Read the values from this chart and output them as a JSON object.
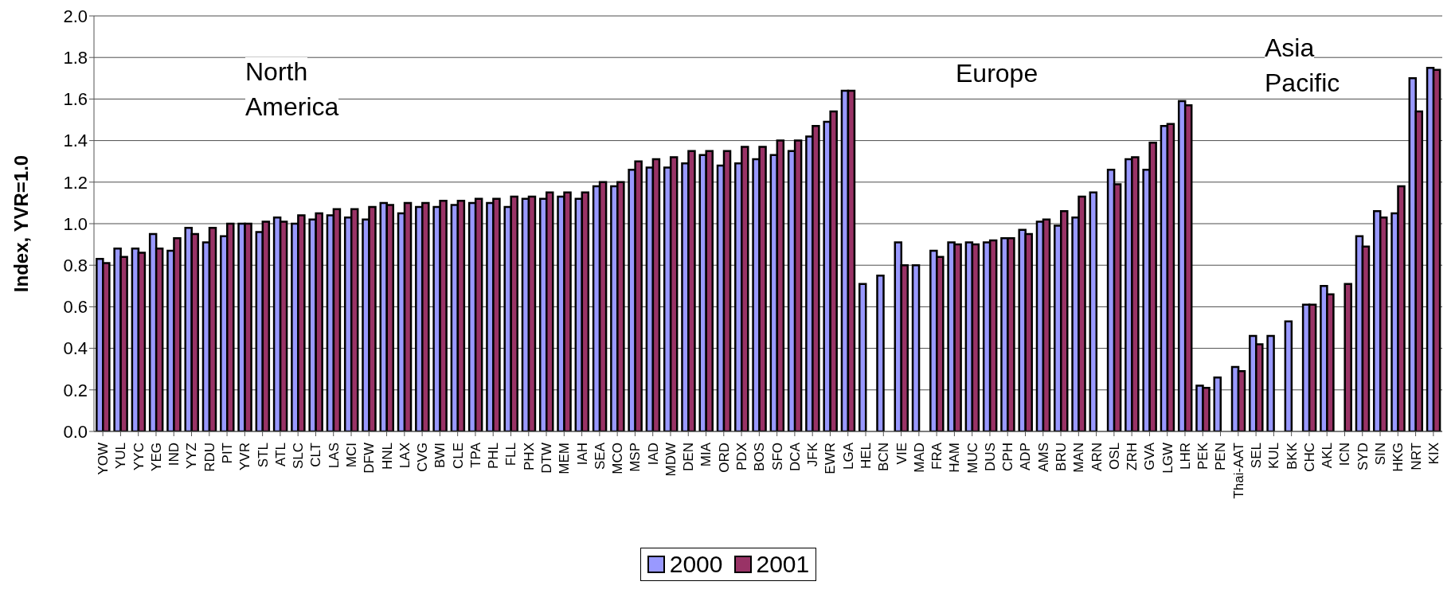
{
  "chart_data": {
    "type": "bar",
    "ylabel": "Index, YVR=1.0",
    "categories": [
      "YOW",
      "YUL",
      "YYC",
      "YEG",
      "IND",
      "YYZ",
      "RDU",
      "PIT",
      "YVR",
      "STL",
      "ATL",
      "SLC",
      "CLT",
      "LAS",
      "MCI",
      "DFW",
      "HNL",
      "LAX",
      "CVG",
      "BWI",
      "CLE",
      "TPA",
      "PHL",
      "FLL",
      "PHX",
      "DTW",
      "MEM",
      "IAH",
      "SEA",
      "MCO",
      "MSP",
      "IAD",
      "MDW",
      "DEN",
      "MIA",
      "ORD",
      "PDX",
      "BOS",
      "SFO",
      "DCA",
      "JFK",
      "EWR",
      "LGA",
      "HEL",
      "BCN",
      "VIE",
      "MAD",
      "FRA",
      "HAM",
      "MUC",
      "DUS",
      "CPH",
      "ADP",
      "AMS",
      "BRU",
      "MAN",
      "ARN",
      "OSL",
      "ZRH",
      "GVA",
      "LGW",
      "LHR",
      "PEK",
      "PEN",
      "Thai-AAT",
      "SEL",
      "KUL",
      "BKK",
      "CHC",
      "AKL",
      "ICN",
      "SYD",
      "SIN",
      "HKG",
      "NRT",
      "KIX"
    ],
    "series": [
      {
        "name": "2000",
        "color": "#9999ff",
        "values": [
          0.83,
          0.88,
          0.88,
          0.95,
          0.87,
          0.98,
          0.91,
          0.94,
          1.0,
          0.96,
          1.03,
          1.0,
          1.02,
          1.04,
          1.03,
          1.02,
          1.1,
          1.05,
          1.08,
          1.08,
          1.09,
          1.1,
          1.1,
          1.08,
          1.12,
          1.12,
          1.13,
          1.12,
          1.18,
          1.18,
          1.26,
          1.27,
          1.27,
          1.29,
          1.33,
          1.28,
          1.29,
          1.31,
          1.33,
          1.35,
          1.42,
          1.49,
          1.64,
          0.71,
          0.75,
          0.91,
          0.8,
          0.87,
          0.91,
          0.91,
          0.91,
          0.93,
          0.97,
          1.01,
          0.99,
          1.03,
          1.15,
          1.26,
          1.31,
          1.26,
          1.47,
          1.59,
          0.22,
          0.26,
          0.31,
          0.46,
          0.46,
          0.53,
          0.61,
          0.7,
          null,
          0.94,
          1.06,
          1.05,
          1.7,
          1.75
        ]
      },
      {
        "name": "2001",
        "color": "#993366",
        "values": [
          0.81,
          0.84,
          0.86,
          0.88,
          0.93,
          0.95,
          0.98,
          1.0,
          1.0,
          1.01,
          1.01,
          1.04,
          1.05,
          1.07,
          1.07,
          1.08,
          1.09,
          1.1,
          1.1,
          1.11,
          1.11,
          1.12,
          1.12,
          1.13,
          1.13,
          1.15,
          1.15,
          1.15,
          1.2,
          1.2,
          1.3,
          1.31,
          1.32,
          1.35,
          1.35,
          1.35,
          1.37,
          1.37,
          1.4,
          1.4,
          1.47,
          1.54,
          1.64,
          null,
          null,
          0.8,
          null,
          0.84,
          0.9,
          0.9,
          0.92,
          0.93,
          0.95,
          1.02,
          1.06,
          1.13,
          null,
          1.19,
          1.32,
          1.39,
          1.48,
          1.57,
          0.21,
          null,
          0.29,
          0.42,
          null,
          null,
          0.61,
          0.66,
          0.71,
          0.89,
          1.03,
          1.18,
          1.54,
          1.74
        ]
      }
    ],
    "ylim": [
      0,
      2
    ],
    "yticks": [
      {
        "value": 0,
        "label": "0.0"
      },
      {
        "value": 0.2,
        "label": "0.2"
      },
      {
        "value": 0.4,
        "label": "0.4"
      },
      {
        "value": 0.6,
        "label": "0.6"
      },
      {
        "value": 0.8,
        "label": "0.8"
      },
      {
        "value": 1,
        "label": "1.0"
      },
      {
        "value": 1.2,
        "label": "1.2"
      },
      {
        "value": 1.4,
        "label": "1.4"
      },
      {
        "value": 1.6,
        "label": "1.6"
      },
      {
        "value": 1.8,
        "label": "1.8"
      },
      {
        "value": 2,
        "label": "2.0"
      }
    ],
    "grid": "y",
    "legend": "bottom",
    "annotations": [
      "North America",
      "Europe",
      "Asia Pacific"
    ]
  }
}
